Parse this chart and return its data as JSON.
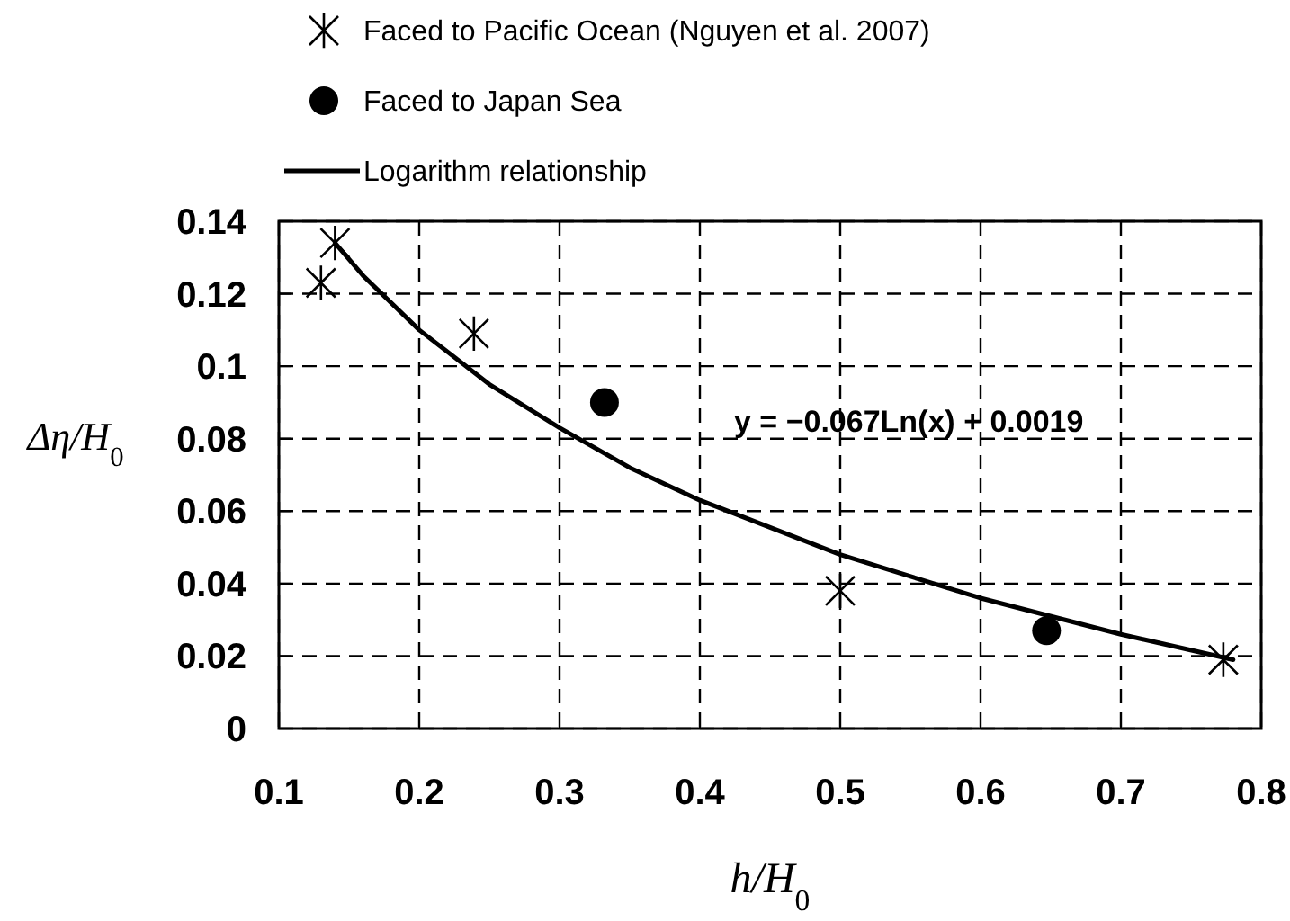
{
  "chart_data": {
    "type": "scatter",
    "xlabel": "h/H$_{0}$",
    "ylabel": "Δη/H$_{0}$",
    "xlim": [
      0.1,
      0.8
    ],
    "ylim": [
      0,
      0.14
    ],
    "xticks": [
      0.1,
      0.2,
      0.3,
      0.4,
      0.5,
      0.6,
      0.7,
      0.8
    ],
    "yticks": [
      0,
      0.02,
      0.04,
      0.06,
      0.08,
      0.1,
      0.12,
      0.14
    ],
    "grid": true,
    "legend": "top",
    "annotations": [
      "y = −0.067Ln(x) + 0.0019"
    ],
    "series": [
      {
        "name": "Faced to Pacific Ocean (Nguyen et al. 2007)",
        "marker": "cross",
        "color": "#000000",
        "x": [
          0.13,
          0.14,
          0.239,
          0.5,
          0.773
        ],
        "values": [
          0.123,
          0.134,
          0.109,
          0.038,
          0.019
        ]
      },
      {
        "name": "Faced to Japan Sea",
        "marker": "circle",
        "color": "#000000",
        "x": [
          0.332,
          0.647
        ],
        "values": [
          0.09,
          0.027
        ]
      },
      {
        "name": "Logarithm relationship",
        "type": "line",
        "marker": "none",
        "line_style": "solid",
        "color": "#000000",
        "x": [
          0.14,
          0.16,
          0.2,
          0.25,
          0.3,
          0.35,
          0.4,
          0.5,
          0.6,
          0.7,
          0.78
        ],
        "values": [
          0.134,
          0.125,
          0.11,
          0.095,
          0.083,
          0.072,
          0.063,
          0.048,
          0.036,
          0.026,
          0.019
        ]
      }
    ]
  }
}
